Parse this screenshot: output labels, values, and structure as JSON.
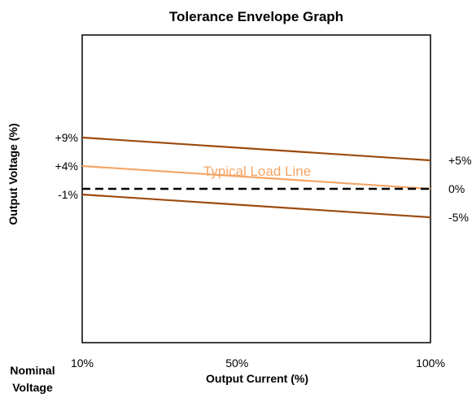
{
  "chart_data": {
    "type": "line",
    "title": "Tolerance Envelope Graph",
    "xlabel": "Output Current (%)",
    "ylabel": "Output Voltage (%)",
    "corner_label": [
      "Nominal",
      "Voltage"
    ],
    "x": [
      10,
      100
    ],
    "x_tick_labels": [
      "10%",
      "50%",
      "100%"
    ],
    "x_ticks": [
      10,
      50,
      100
    ],
    "xlim": [
      10,
      100
    ],
    "ylim": [
      -27,
      27
    ],
    "grid": false,
    "legend": "none",
    "left_value_labels": [
      {
        "text": "+9%",
        "value": 9
      },
      {
        "text": "+4%",
        "value": 4
      },
      {
        "text": "-1%",
        "value": -1
      }
    ],
    "right_value_labels": [
      {
        "text": "+5%",
        "value": 5
      },
      {
        "text": "0%",
        "value": 0
      },
      {
        "text": "-5%",
        "value": -5
      }
    ],
    "annotation": "Typical Load Line",
    "series": [
      {
        "role": "upper",
        "values": [
          9,
          5
        ],
        "color": "#9c4a0c",
        "dash": "solid"
      },
      {
        "role": "typical",
        "values": [
          4,
          0
        ],
        "color": "#f4a565",
        "dash": "solid"
      },
      {
        "role": "nominal",
        "values": [
          0,
          0
        ],
        "color": "#000000",
        "dash": "dashed"
      },
      {
        "role": "lower",
        "values": [
          -1,
          -5
        ],
        "color": "#9c4a0c",
        "dash": "solid"
      }
    ]
  }
}
